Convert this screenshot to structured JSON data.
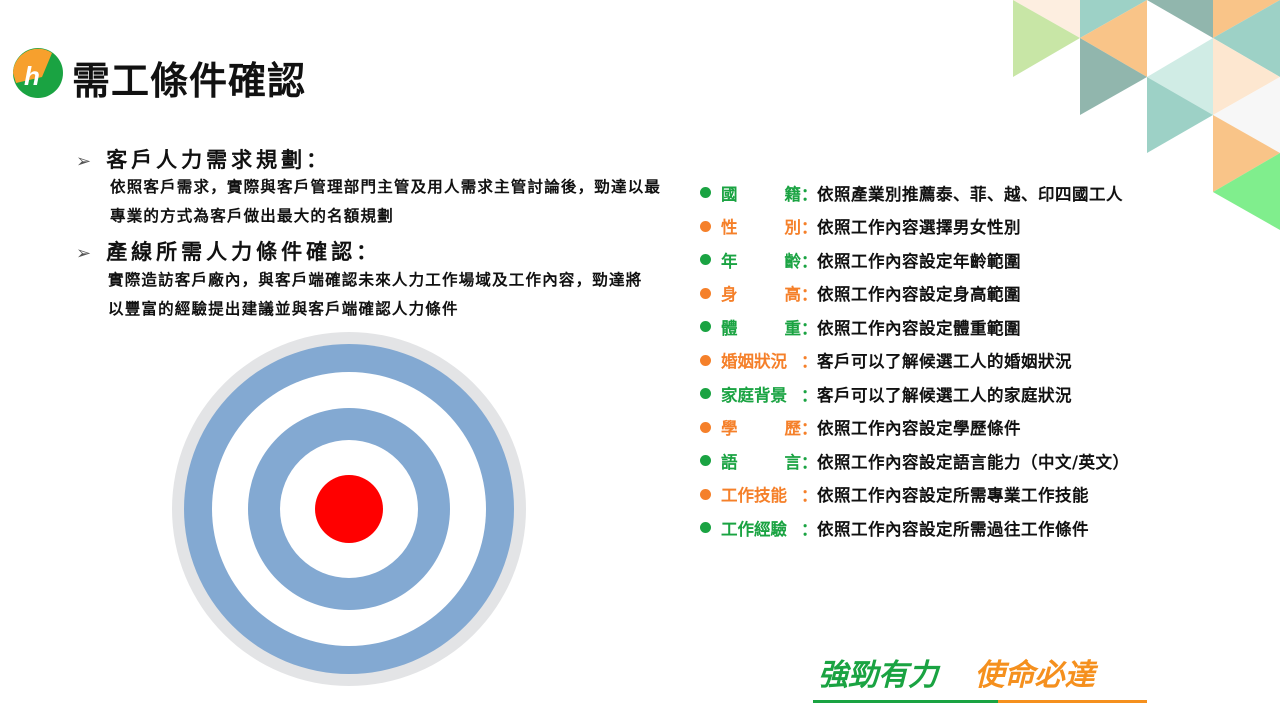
{
  "header": {
    "title": "需工條件確認",
    "logo": "logo-icon"
  },
  "sections": [
    {
      "heading": "客戶人力需求規劃：",
      "body": "依照客戶需求，實際與客戶管理部門主管及用人需求主管討論後，勁達以最專業的方式為客戶做出最大的名額規劃"
    },
    {
      "heading": "產線所需人力條件確認：",
      "body": "實際造訪客戶廠內，與客戶端確認未來人力工作場域及工作內容，勁達將以豐富的經驗提出建議並與客戶端確認人力條件"
    }
  ],
  "colors": {
    "green": "#1aa342",
    "orange": "#f5802a",
    "ring_blue": "#83a9d2",
    "ring_gray": "#e3e4e6",
    "target_red": "#ff0000"
  },
  "criteria": [
    {
      "label": "國籍",
      "split": true,
      "color": "green",
      "value": "依照產業別推薦泰、菲、越、印四國工人"
    },
    {
      "label": "性別",
      "split": true,
      "color": "orange",
      "value": "依照工作內容選擇男女性別"
    },
    {
      "label": "年齡",
      "split": true,
      "color": "green",
      "value": "依照工作內容設定年齡範圍"
    },
    {
      "label": "身高",
      "split": true,
      "color": "orange",
      "value": "依照工作內容設定身高範圍"
    },
    {
      "label": "體重",
      "split": true,
      "color": "green",
      "value": "依照工作內容設定體重範圍"
    },
    {
      "label": "婚姻狀況",
      "split": false,
      "color": "orange",
      "value": "客戶可以了解候選工人的婚姻狀況"
    },
    {
      "label": "家庭背景",
      "split": false,
      "color": "green",
      "value": "客戶可以了解候選工人的家庭狀況"
    },
    {
      "label": "學歷",
      "split": true,
      "color": "orange",
      "value": "依照工作內容設定學歷條件"
    },
    {
      "label": "語言",
      "split": true,
      "color": "green",
      "value": "依照工作內容設定語言能力（中文/英文）"
    },
    {
      "label": "工作技能",
      "split": false,
      "color": "orange",
      "value": "依照工作內容設定所需專業工作技能"
    },
    {
      "label": "工作經驗",
      "split": false,
      "color": "green",
      "value": "依照工作內容設定所需過往工作條件"
    }
  ],
  "criteria_colon": "：",
  "slogan": {
    "part1": "強勁有力",
    "part2": "使命必達"
  }
}
